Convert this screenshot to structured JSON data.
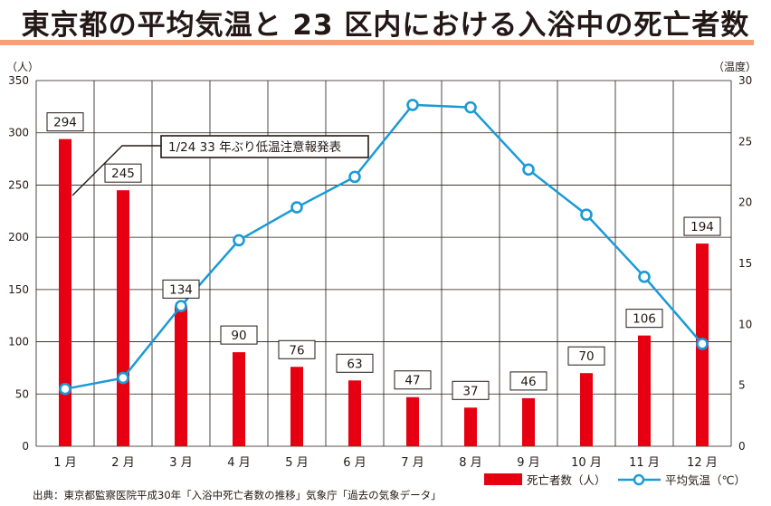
{
  "title": "東京都の平均気温と 23 区内における入浴中の死亡者数",
  "source": "出典：東京都監察医院平成30年「入浴中死亡者数の推移」気象庁「過去の気象データ」",
  "colors": {
    "bar": "#e60012",
    "line": "#1a9ad6",
    "title_rule": "#f4a17a",
    "grid": "#231815"
  },
  "chart_data": {
    "type": "bar",
    "categories": [
      "1 月",
      "2 月",
      "3 月",
      "4 月",
      "5 月",
      "6 月",
      "7 月",
      "8 月",
      "9 月",
      "10 月",
      "11 月",
      "12 月"
    ],
    "y_left": {
      "unit_label": "（人）",
      "range": [
        0,
        350
      ],
      "ticks": [
        0,
        50,
        100,
        150,
        200,
        250,
        300,
        350
      ]
    },
    "y_right": {
      "unit_label": "（温度）",
      "range": [
        0,
        30
      ],
      "ticks": [
        0,
        5,
        10,
        15,
        20,
        25,
        30
      ]
    },
    "grid": true,
    "legend_position": "bottom-right",
    "series": [
      {
        "name": "死亡者数（人）",
        "type": "bar",
        "axis": "left",
        "values": [
          294,
          245,
          134,
          90,
          76,
          63,
          47,
          37,
          46,
          70,
          106,
          194
        ]
      },
      {
        "name": "平均気温（℃）",
        "type": "line",
        "axis": "right",
        "values": [
          4.7,
          5.6,
          11.5,
          16.9,
          19.6,
          22.1,
          28.0,
          27.8,
          22.7,
          19.0,
          13.9,
          8.4
        ]
      }
    ],
    "annotation": {
      "text": "1/24  33 年ぶり低温注意報発表",
      "category_index": 0
    }
  }
}
